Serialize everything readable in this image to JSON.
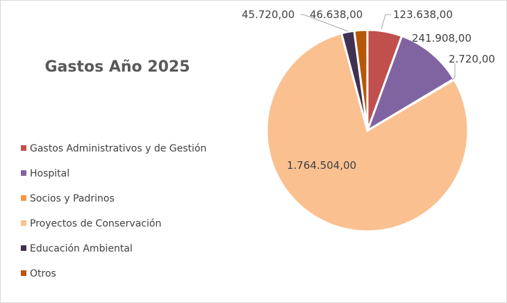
{
  "chart_data": {
    "type": "pie",
    "title": "Gastos Año 2025",
    "categories": [
      "Gastos Administrativos y de Gestión",
      "Hospital",
      "Socios y Padrinos",
      "Proyectos de Conservación",
      "Educación Ambiental",
      "Otros"
    ],
    "values": [
      123638,
      241908,
      2720,
      1764504,
      45720,
      46638
    ],
    "data_labels": [
      "123.638,00",
      "241.908,00",
      "2.720,00",
      "1.764.504,00",
      "45.720,00",
      "46.638,00"
    ],
    "colors": [
      "#C0504D",
      "#8064A2",
      "#F79646",
      "#FAC090",
      "#403152",
      "#B65708"
    ],
    "legend_position": "left",
    "start_angle": "top, clockwise"
  }
}
